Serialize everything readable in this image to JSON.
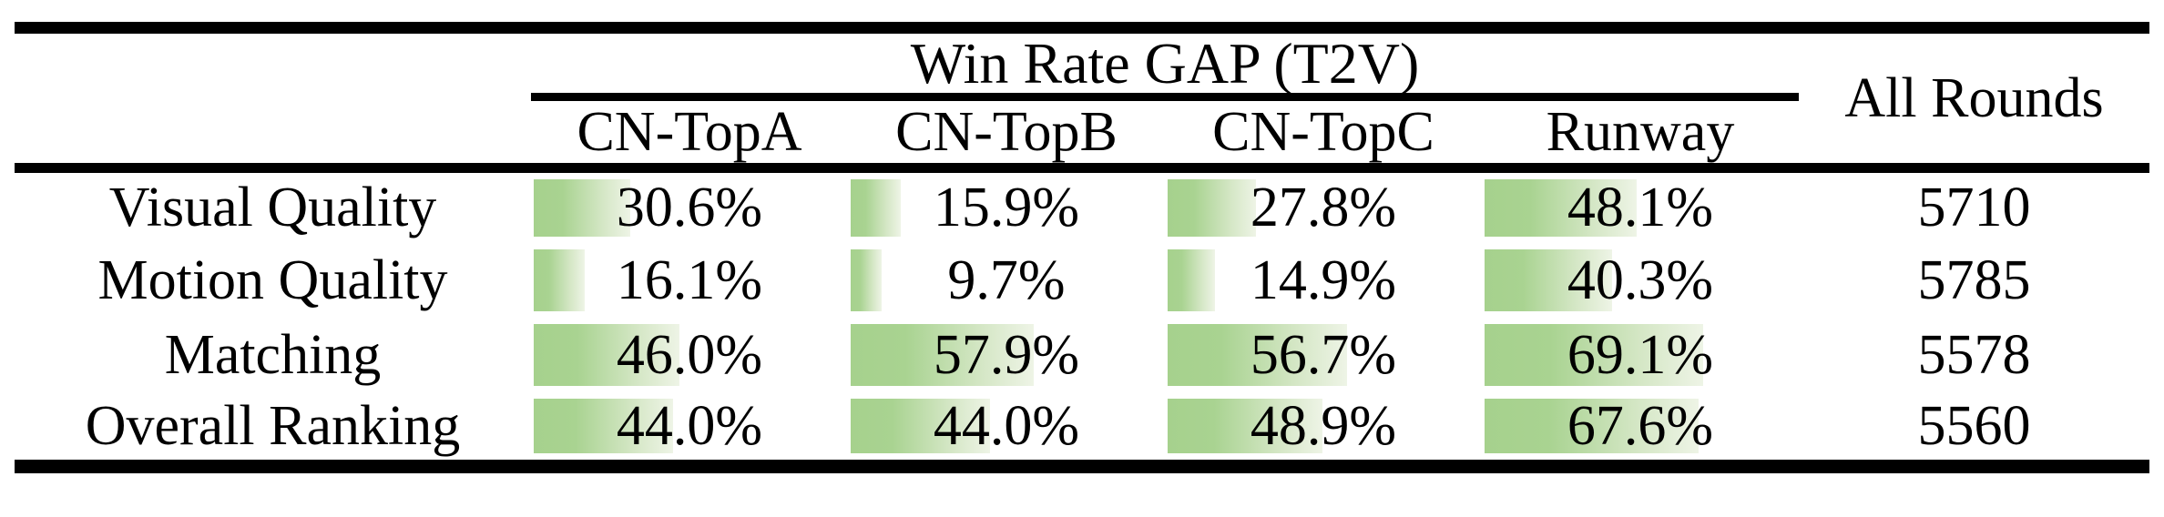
{
  "colors": {
    "bar_green_start": "#a9d391",
    "bar_green_end": "#eef4e6",
    "rule_black": "#000000",
    "background": "#ffffff"
  },
  "table": {
    "group_header": "Win Rate GAP (T2V)",
    "all_rounds_header": "All Rounds",
    "columns": [
      "CN-TopA",
      "CN-TopB",
      "CN-TopC",
      "Runway"
    ],
    "rows": [
      {
        "label": "Visual Quality",
        "values": [
          30.6,
          15.9,
          27.8,
          48.1
        ],
        "display": [
          "30.6%",
          "15.9%",
          "27.8%",
          "48.1%"
        ],
        "all_rounds": "5710"
      },
      {
        "label": "Motion Quality",
        "values": [
          16.1,
          9.7,
          14.9,
          40.3
        ],
        "display": [
          "16.1%",
          "9.7%",
          "14.9%",
          "40.3%"
        ],
        "all_rounds": "5785"
      },
      {
        "label": "Matching",
        "values": [
          46.0,
          57.9,
          56.7,
          69.1
        ],
        "display": [
          "46.0%",
          "57.9%",
          "56.7%",
          "69.1%"
        ],
        "all_rounds": "5578"
      },
      {
        "label": "Overall Ranking",
        "values": [
          44.0,
          44.0,
          48.9,
          67.6
        ],
        "display": [
          "44.0%",
          "44.0%",
          "48.9%",
          "67.6%"
        ],
        "all_rounds": "5560"
      }
    ]
  },
  "chart_data": {
    "type": "table",
    "title": "Win Rate GAP (T2V)",
    "categories": [
      "Visual Quality",
      "Motion Quality",
      "Matching",
      "Overall Ranking"
    ],
    "series": [
      {
        "name": "CN-TopA",
        "unit": "%",
        "values": [
          30.6,
          16.1,
          46.0,
          44.0
        ]
      },
      {
        "name": "CN-TopB",
        "unit": "%",
        "values": [
          15.9,
          9.7,
          57.9,
          44.0
        ]
      },
      {
        "name": "CN-TopC",
        "unit": "%",
        "values": [
          27.8,
          14.9,
          56.7,
          48.9
        ]
      },
      {
        "name": "Runway",
        "unit": "%",
        "values": [
          48.1,
          40.3,
          69.1,
          67.6
        ]
      },
      {
        "name": "All Rounds",
        "unit": "rounds",
        "values": [
          5710,
          5785,
          5578,
          5560
        ]
      }
    ],
    "layout": {
      "data_bars": "green gradient bars behind percentage cells, length = value on 0–100% scale",
      "grid": false,
      "rules": "booktabs style: thick top rule, partial rule under group header spanning the four win-rate columns, thick rule under column headers, thick bottom rule"
    }
  }
}
